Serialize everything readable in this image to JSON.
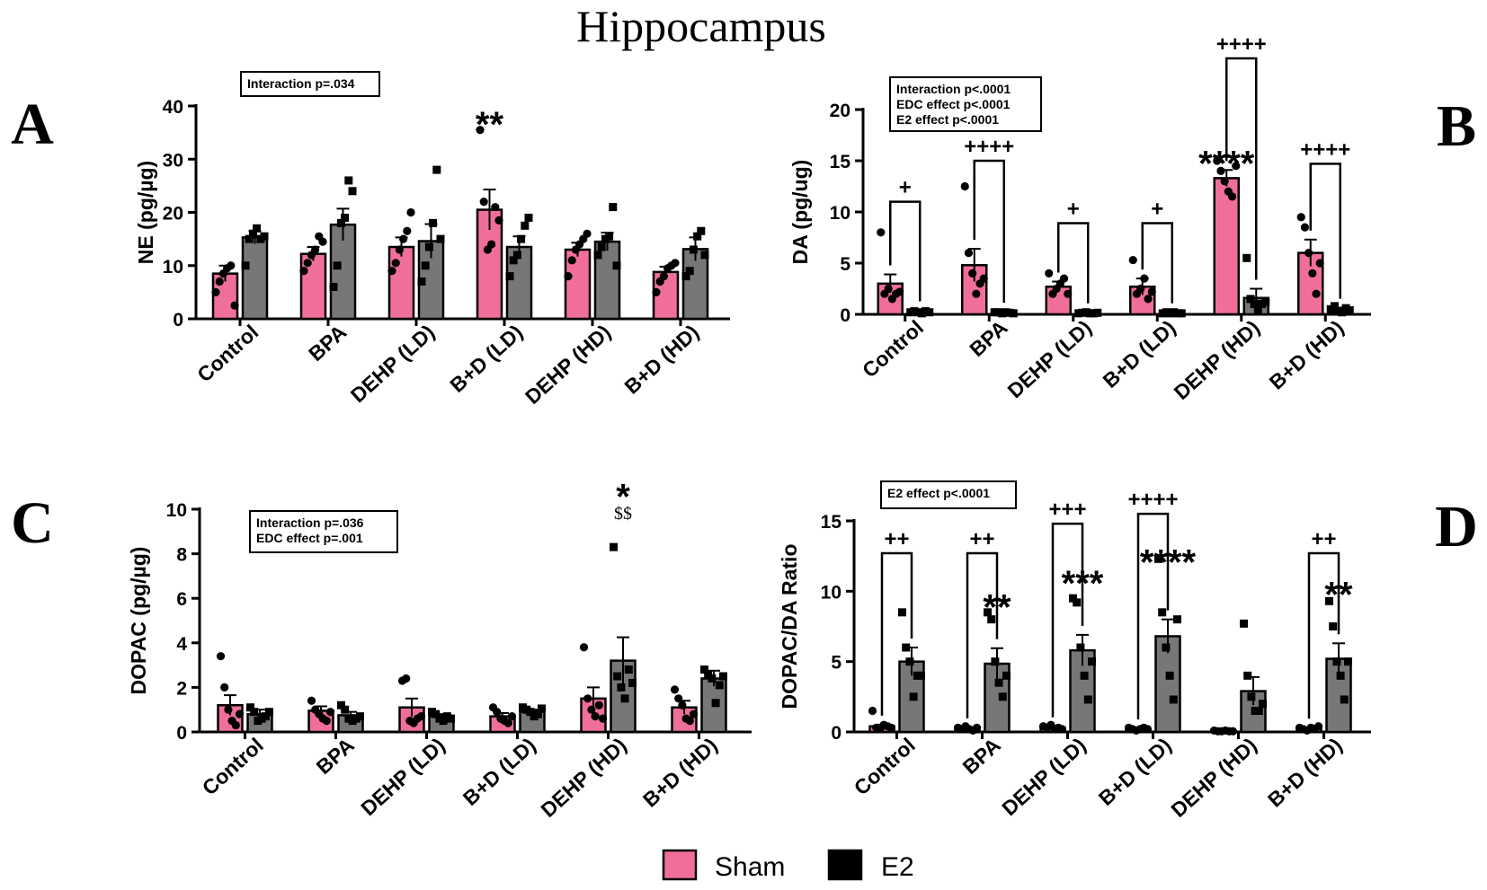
{
  "figure": {
    "title": "Hippocampus",
    "legend": [
      {
        "label": "Sham",
        "color": "#f06f99"
      },
      {
        "label": "E2",
        "color": "#000000"
      }
    ],
    "e2_bar_color": "#777777"
  },
  "chart_data": [
    {
      "id": "A",
      "panel_letter": "A",
      "type": "bar",
      "ylabel": "NE (pg/µg)",
      "ylim": [
        0,
        40
      ],
      "yticks": [
        0,
        10,
        20,
        30,
        40
      ],
      "categories": [
        "Control",
        "BPA",
        "DEHP (LD)",
        "B+D (LD)",
        "DEHP (HD)",
        "B+D (HD)"
      ],
      "series": [
        {
          "name": "Sham",
          "values": [
            8.5,
            12.2,
            13.5,
            20.5,
            13.0,
            8.8
          ],
          "errors": [
            1.5,
            1.3,
            1.8,
            3.8,
            1.3,
            1.0
          ],
          "points": [
            [
              5,
              7,
              8.5,
              9.5,
              10,
              2.5
            ],
            [
              9,
              10.5,
              12,
              13,
              15.5,
              14.5
            ],
            [
              9,
              10.5,
              13,
              15,
              16.5,
              20
            ],
            [
              35.5,
              22,
              13,
              14,
              21,
              18.5
            ],
            [
              8,
              11,
              13,
              14,
              15,
              16
            ],
            [
              5,
              7,
              8,
              9.5,
              10,
              10.5
            ]
          ]
        },
        {
          "name": "E2",
          "values": [
            15.3,
            17.7,
            14.6,
            13.5,
            14.5,
            13.1
          ],
          "errors": [
            1.2,
            3.0,
            3.2,
            2.0,
            1.7,
            2.2
          ],
          "points": [
            [
              10,
              15,
              16,
              17,
              15,
              15.5
            ],
            [
              6,
              10,
              18,
              19,
              26,
              24
            ],
            [
              7,
              10,
              13.5,
              18,
              28,
              15
            ],
            [
              8,
              11,
              12,
              15,
              17.5,
              19
            ],
            [
              12,
              13.5,
              15,
              15.5,
              21,
              10
            ],
            [
              8,
              9,
              13,
              15.5,
              16.5,
              12
            ]
          ]
        }
      ],
      "stat_box": [
        "Interaction p=.034"
      ],
      "annotations": [
        {
          "text": "**",
          "group": 3,
          "value": 38
        }
      ],
      "brackets": []
    },
    {
      "id": "B",
      "panel_letter": "B",
      "type": "bar",
      "ylabel": "DA (pg/ug)",
      "ylim": [
        0,
        20
      ],
      "yticks": [
        0,
        5,
        10,
        15,
        20
      ],
      "categories": [
        "Control",
        "BPA",
        "DEHP (LD)",
        "B+D (LD)",
        "DEHP (HD)",
        "B+D (HD)"
      ],
      "series": [
        {
          "name": "Sham",
          "values": [
            3.0,
            4.8,
            2.7,
            2.7,
            13.3,
            6.0
          ],
          "errors": [
            0.9,
            1.6,
            0.5,
            0.8,
            0.8,
            1.3
          ],
          "points": [
            [
              8,
              2,
              2.5,
              1.5,
              2,
              2.2
            ],
            [
              12.5,
              6,
              4,
              2,
              3,
              3.5
            ],
            [
              4,
              2,
              2.5,
              3,
              3.5,
              2
            ],
            [
              5.3,
              2,
              2.5,
              3.5,
              1.5,
              2.2
            ],
            [
              15,
              14,
              13,
              12,
              11.5,
              14.5
            ],
            [
              9.5,
              8.5,
              6,
              4,
              2,
              5
            ]
          ]
        },
        {
          "name": "E2",
          "values": [
            0.3,
            0.2,
            0.15,
            0.15,
            1.6,
            0.5
          ],
          "errors": [
            0.1,
            0.05,
            0.05,
            0.05,
            0.9,
            0.15
          ],
          "points": [
            [
              0.2,
              0.3,
              0.2,
              0.1,
              0.3,
              0.2
            ],
            [
              0.2,
              0.2,
              0.1,
              0.2,
              0.15,
              0.1
            ],
            [
              0.1,
              0.15,
              0.2,
              0.1,
              0.1,
              0.15
            ],
            [
              0.1,
              0.2,
              0.1,
              0.2,
              0.1,
              0.1
            ],
            [
              5.5,
              1.5,
              1,
              0.5,
              1,
              1.2
            ],
            [
              0.5,
              0.8,
              0.3,
              0.2,
              0.6,
              0.4
            ]
          ]
        }
      ],
      "stat_box": [
        "Interaction p<.0001",
        "EDC effect p<.0001",
        "E2 effect p<.0001"
      ],
      "annotations": [
        {
          "text": "****",
          "group": 4,
          "value": 15.5
        }
      ],
      "brackets": [
        {
          "group": 0,
          "value": 11,
          "label": "+"
        },
        {
          "group": 1,
          "value": 15,
          "label": "++++"
        },
        {
          "group": 2,
          "value": 8.9,
          "label": "+"
        },
        {
          "group": 3,
          "value": 8.9,
          "label": "+"
        },
        {
          "group": 4,
          "value": 25,
          "label": "++++"
        },
        {
          "group": 5,
          "value": 14.7,
          "label": "++++"
        }
      ]
    },
    {
      "id": "C",
      "panel_letter": "C",
      "type": "bar",
      "ylabel": "DOPAC (pg/µg)",
      "ylim": [
        0,
        10
      ],
      "yticks": [
        0,
        2,
        4,
        6,
        8,
        10
      ],
      "categories": [
        "Control",
        "BPA",
        "DEHP (LD)",
        "B+D (LD)",
        "DEHP (HD)",
        "B+D (HD)"
      ],
      "series": [
        {
          "name": "Sham",
          "values": [
            1.2,
            0.95,
            1.1,
            0.7,
            1.5,
            1.1
          ],
          "errors": [
            0.45,
            0.2,
            0.4,
            0.15,
            0.5,
            0.3
          ],
          "points": [
            [
              3.4,
              2,
              1,
              0.5,
              0.3,
              0.8
            ],
            [
              1.4,
              1,
              0.8,
              0.6,
              0.5,
              0.9
            ],
            [
              2.3,
              2.4,
              0.5,
              0.4,
              0.6,
              0.7
            ],
            [
              1.1,
              0.9,
              0.6,
              0.5,
              0.4,
              0.7
            ],
            [
              3.8,
              1.5,
              1,
              0.7,
              1.2,
              0.6
            ],
            [
              1.9,
              1.5,
              1.2,
              0.6,
              0.5,
              0.8
            ]
          ]
        },
        {
          "name": "E2",
          "values": [
            0.8,
            0.75,
            0.7,
            0.9,
            3.2,
            2.4
          ],
          "errors": [
            0.2,
            0.15,
            0.1,
            0.1,
            1.05,
            0.35
          ],
          "points": [
            [
              1.1,
              0.9,
              0.5,
              0.6,
              0.7,
              0.9
            ],
            [
              1.2,
              1,
              0.6,
              0.5,
              0.6,
              0.7
            ],
            [
              0.9,
              0.8,
              0.6,
              0.5,
              0.7,
              0.6
            ],
            [
              1.1,
              1,
              0.9,
              0.7,
              0.8,
              1.05
            ],
            [
              8.3,
              2.5,
              2,
              1.5,
              2.8,
              2.2
            ],
            [
              2.8,
              2.6,
              2.4,
              1.3,
              2.1,
              2.5
            ]
          ]
        }
      ],
      "stat_box": [
        "Interaction p=.036",
        "EDC effect p=.001"
      ],
      "annotations": [
        {
          "text": "*",
          "group": 4,
          "value": 10.9,
          "kind": "star"
        },
        {
          "text": "$$",
          "group": 4,
          "value": 9.55,
          "kind": "dollar"
        }
      ],
      "brackets": []
    },
    {
      "id": "D",
      "panel_letter": "D",
      "type": "bar",
      "ylabel": "DOPAC/DA Ratio",
      "ylim": [
        0,
        15
      ],
      "yticks": [
        0,
        5,
        10,
        15
      ],
      "categories": [
        "Control",
        "BPA",
        "DEHP (LD)",
        "B+D (LD)",
        "DEHP (HD)",
        "B+D (HD)"
      ],
      "series": [
        {
          "name": "Sham",
          "values": [
            0.4,
            0.25,
            0.3,
            0.2,
            0.05,
            0.25
          ],
          "errors": [
            0.12,
            0.08,
            0.1,
            0.05,
            0.03,
            0.05
          ],
          "points": [
            [
              1.5,
              0.3,
              0.2,
              0.5,
              0.4,
              0.3
            ],
            [
              0.3,
              0.2,
              0.4,
              0.2,
              0.1,
              0.3
            ],
            [
              0.4,
              0.3,
              0.5,
              0.2,
              0.3,
              0.2
            ],
            [
              0.3,
              0.2,
              0.1,
              0.2,
              0.3,
              0.2
            ],
            [
              0.1,
              0.05,
              0.05,
              0.1,
              0.05,
              0.05
            ],
            [
              0.3,
              0.2,
              0.1,
              0.3,
              0.2,
              0.4
            ]
          ]
        },
        {
          "name": "E2",
          "values": [
            5.0,
            4.85,
            5.8,
            6.8,
            2.9,
            5.2
          ],
          "errors": [
            1.0,
            1.1,
            1.1,
            1.2,
            1.0,
            1.1
          ],
          "points": [
            [
              8.5,
              6,
              5,
              2.5,
              4,
              4
            ],
            [
              8.5,
              8,
              5,
              3.5,
              2.5,
              4
            ],
            [
              9.5,
              9.2,
              6,
              4,
              2.3,
              5
            ],
            [
              12.3,
              8.5,
              6,
              4,
              2.3,
              8
            ],
            [
              7.7,
              4,
              2.5,
              1.5,
              1.5,
              2
            ],
            [
              9.3,
              7.5,
              5,
              4,
              2.3,
              5
            ]
          ]
        }
      ],
      "stat_box": [
        "E2 effect p<.0001"
      ],
      "annotations": [
        {
          "text": "**",
          "group": 1,
          "value": 9.4
        },
        {
          "text": "***",
          "group": 2,
          "value": 11.1
        },
        {
          "text": "****",
          "group": 3,
          "value": 12.6
        },
        {
          "text": "**",
          "group": 5,
          "value": 10.3
        }
      ],
      "brackets": [
        {
          "group": 0,
          "value": 12.7,
          "label": "++"
        },
        {
          "group": 1,
          "value": 12.7,
          "label": "++"
        },
        {
          "group": 2,
          "value": 14.8,
          "label": "+++"
        },
        {
          "group": 3,
          "value": 15.5,
          "label": "++++"
        },
        {
          "group": 5,
          "value": 12.7,
          "label": "++"
        }
      ]
    }
  ]
}
